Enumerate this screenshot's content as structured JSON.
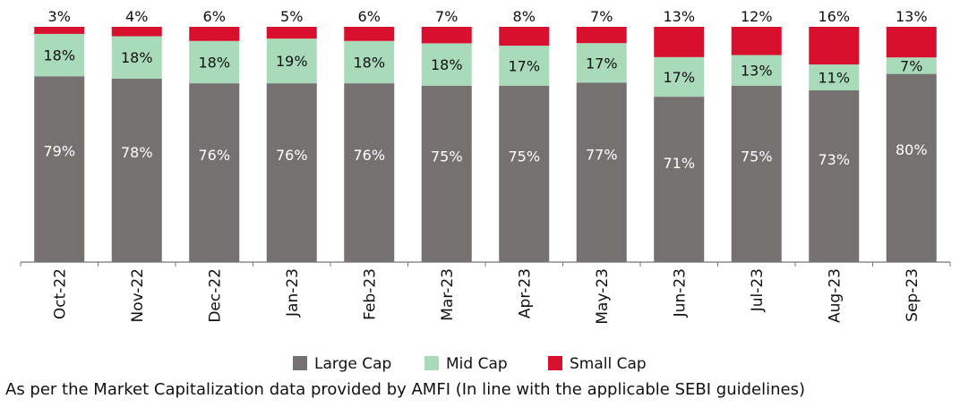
{
  "chart_data": {
    "type": "bar",
    "stacked": true,
    "percent_stacked": true,
    "categories": [
      "Oct-22",
      "Nov-22",
      "Dec-22",
      "Jan-23",
      "Feb-23",
      "Mar-23",
      "Apr-23",
      "May-23",
      "Jun-23",
      "Jul-23",
      "Aug-23",
      "Sep-23"
    ],
    "series": [
      {
        "name": "Large Cap",
        "color": "#757170",
        "values": [
          79,
          78,
          76,
          76,
          76,
          75,
          75,
          77,
          71,
          75,
          73,
          80
        ]
      },
      {
        "name": "Mid Cap",
        "color": "#a9dbbb",
        "values": [
          18,
          18,
          18,
          19,
          18,
          18,
          17,
          17,
          17,
          13,
          11,
          7
        ]
      },
      {
        "name": "Small Cap",
        "color": "#d8102d",
        "values": [
          3,
          4,
          6,
          5,
          6,
          7,
          8,
          7,
          13,
          12,
          16,
          13
        ]
      }
    ],
    "data_labels": true,
    "ylim": [
      0,
      100
    ],
    "grid": false,
    "legend_position": "bottom"
  },
  "footnote": "As per the Market Capitalization data provided by AMFI (In line with the applicable SEBI guidelines)"
}
